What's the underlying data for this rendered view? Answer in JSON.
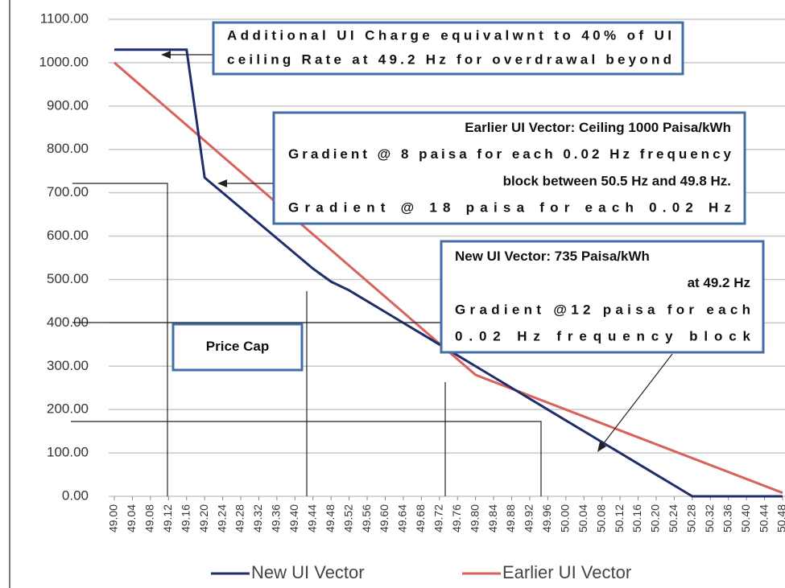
{
  "chart_data": {
    "type": "line",
    "categories": [
      "49.00",
      "49.04",
      "49.08",
      "49.12",
      "49.16",
      "49.20",
      "49.24",
      "49.28",
      "49.32",
      "49.36",
      "49.40",
      "49.44",
      "49.48",
      "49.52",
      "49.56",
      "49.60",
      "49.64",
      "49.68",
      "49.72",
      "49.76",
      "49.80",
      "49.84",
      "49.88",
      "49.92",
      "49.96",
      "50.00",
      "50.04",
      "50.08",
      "50.12",
      "50.16",
      "50.20",
      "50.24",
      "50.28",
      "50.32",
      "50.36",
      "50.40",
      "50.44",
      "50.48"
    ],
    "series": [
      {
        "name": "New UI Vector",
        "color": "#1f2d6e",
        "values": [
          1030,
          1030,
          1030,
          1030,
          1030,
          735,
          700,
          665,
          630,
          595,
          560,
          525,
          495,
          475,
          450,
          425,
          400,
          375,
          350,
          325,
          300,
          275,
          250,
          225,
          200,
          175,
          150,
          125,
          100,
          75,
          50,
          25,
          0,
          0,
          0,
          0,
          0,
          0
        ]
      },
      {
        "name": "Earlier UI Vector",
        "color": "#d9625c",
        "values": [
          1000,
          964,
          928,
          892,
          856,
          820,
          784,
          748,
          712,
          676,
          640,
          604,
          568,
          532,
          496,
          460,
          424,
          388,
          352,
          316,
          280,
          264,
          248,
          232,
          216,
          200,
          184,
          168,
          152,
          136,
          120,
          104,
          88,
          72,
          56,
          40,
          24,
          8
        ]
      }
    ],
    "ylim": [
      0,
      1100
    ],
    "yticks": [
      {
        "value": 0,
        "label": "0.00"
      },
      {
        "value": 100,
        "label": "100.00"
      },
      {
        "value": 200,
        "label": "200.00"
      },
      {
        "value": 300,
        "label": "300.00"
      },
      {
        "value": 400,
        "label": "400.00"
      },
      {
        "value": 500,
        "label": "500.00"
      },
      {
        "value": 600,
        "label": "600.00"
      },
      {
        "value": 700,
        "label": "700.00"
      },
      {
        "value": 800,
        "label": "800.00"
      },
      {
        "value": 900,
        "label": "900.00"
      },
      {
        "value": 1000,
        "label": "1000.00"
      },
      {
        "value": 1100,
        "label": "1100.00"
      }
    ],
    "grid": true,
    "legend": "bottom",
    "annotations": [
      {
        "lines": [
          "Additional UI Charge equivalwnt to 40% of UI",
          "ceiling Rate at 49.2 Hz  for overdrawal beyond"
        ]
      },
      {
        "lines": [
          "Earlier UI Vector: Ceiling 1000 Paisa/kWh",
          "Gradient @ 8 paisa for each 0.02 Hz frequency",
          "block between 50.5 Hz and 49.8 Hz.",
          "Gradient  @  18  paisa  for  each  0.02  Hz"
        ]
      },
      {
        "lines": [
          "New UI Vector:  735 Paisa/kWh",
          "at 49.2 Hz",
          "Gradient @12 paisa for each",
          "0.02   Hz   frequency   block"
        ]
      },
      {
        "lines": [
          "Price  Cap"
        ]
      }
    ]
  }
}
